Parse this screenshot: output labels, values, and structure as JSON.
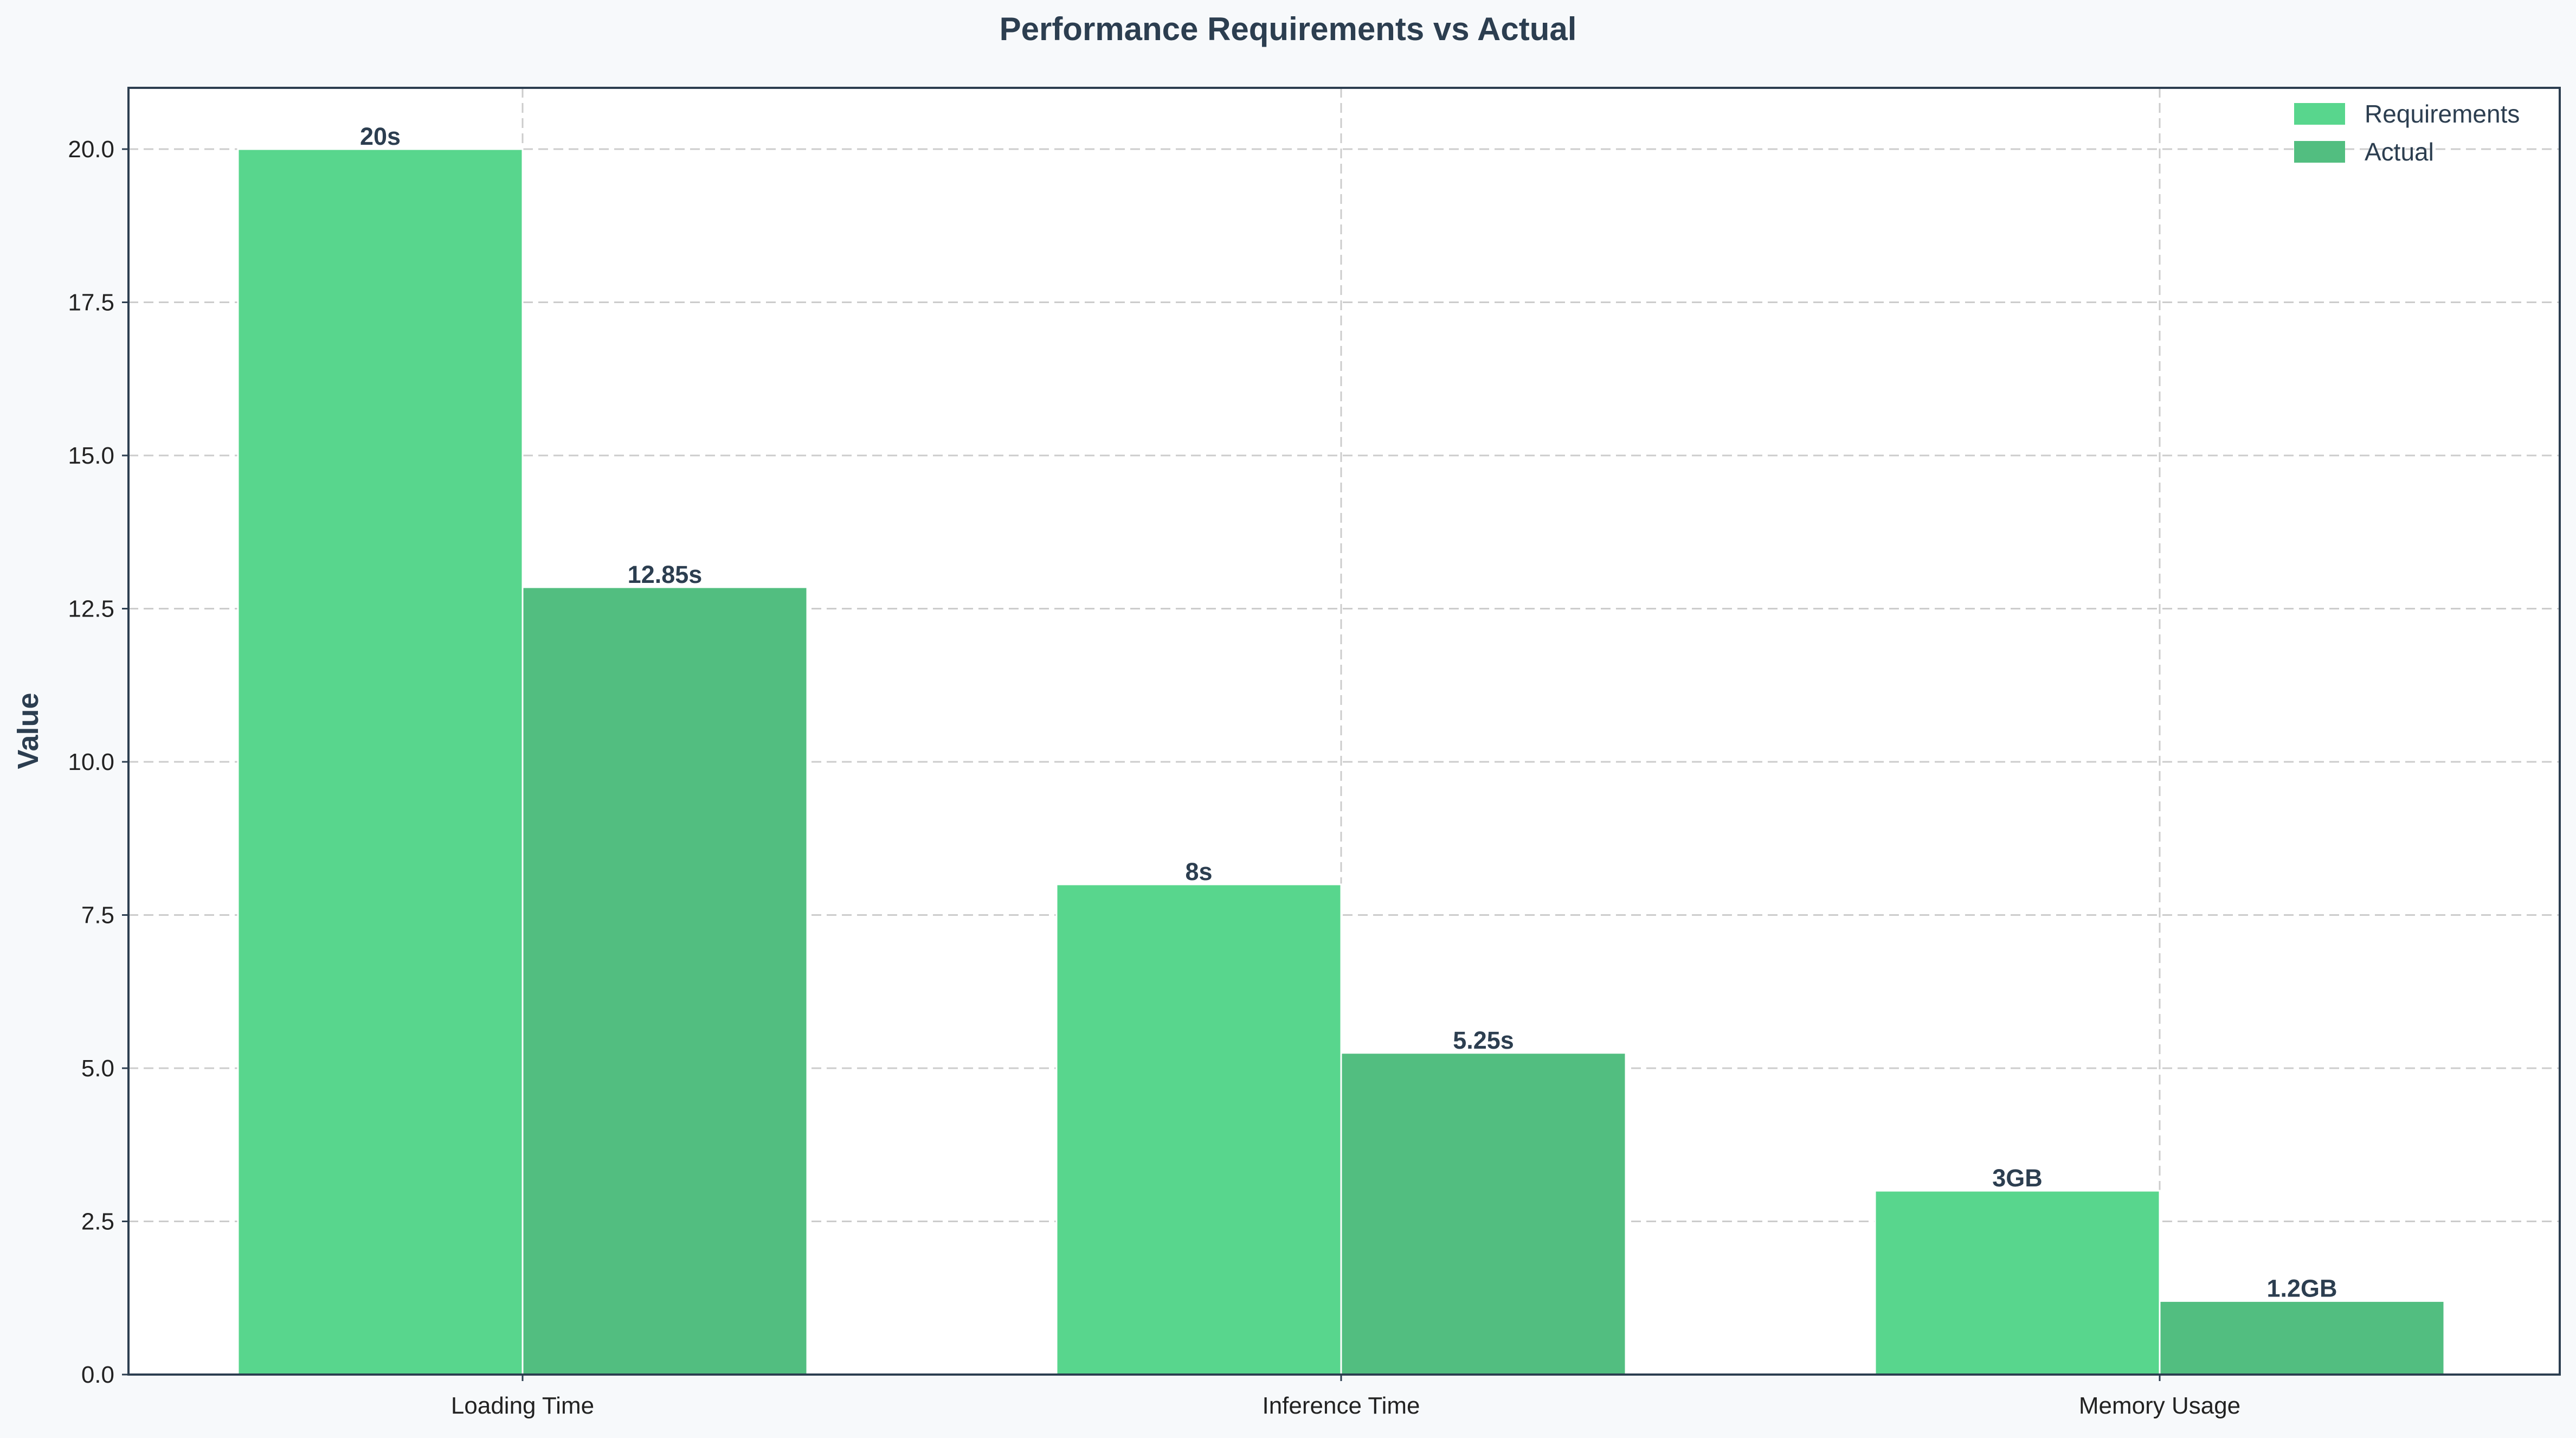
{
  "chart_data": {
    "type": "bar",
    "title": "Performance Requirements vs Actual",
    "xlabel": "",
    "ylabel": "Value",
    "categories": [
      "Loading Time",
      "Inference Time",
      "Memory Usage"
    ],
    "series": [
      {
        "name": "Requirements",
        "values": [
          20,
          8,
          3
        ],
        "labels": [
          "20s",
          "8s",
          "3GB"
        ],
        "color": "#58d68d"
      },
      {
        "name": "Actual",
        "values": [
          12.85,
          5.25,
          1.2
        ],
        "labels": [
          "12.85s",
          "5.25s",
          "1.2GB"
        ],
        "color": "#52be80"
      }
    ],
    "ylim": [
      0,
      21
    ],
    "yticks": [
      0,
      2.5,
      5,
      7.5,
      10,
      12.5,
      15,
      17.5,
      20
    ],
    "ytick_labels": [
      "0.0",
      "2.5",
      "5.0",
      "7.5",
      "10.0",
      "12.5",
      "15.0",
      "17.5",
      "20.0"
    ],
    "grid": true,
    "legend_position": "top-right",
    "colors": {
      "background": "#f7f9fb",
      "plot_background": "#ffffff",
      "axes": "#2c3e50",
      "grid": "#cccccc",
      "text": "#2c3e50"
    }
  }
}
